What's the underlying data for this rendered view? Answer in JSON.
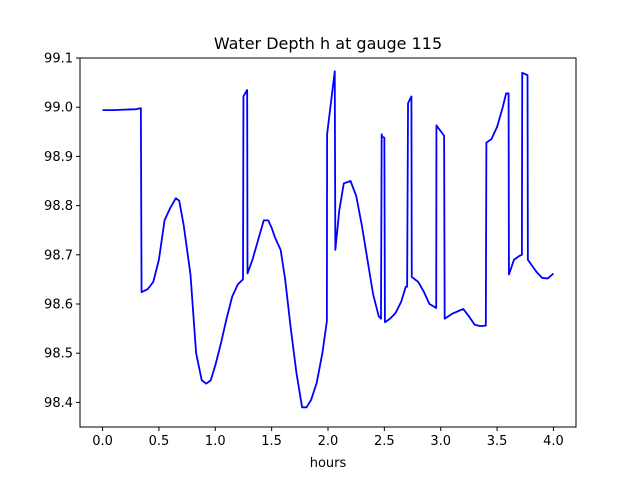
{
  "chart_data": {
    "type": "line",
    "title": "Water Depth h at gauge 115",
    "xlabel": "hours",
    "ylabel": "",
    "xlim": [
      -0.2,
      4.2
    ],
    "ylim": [
      98.35,
      99.1
    ],
    "xticks": [
      0.0,
      0.5,
      1.0,
      1.5,
      2.0,
      2.5,
      3.0,
      3.5,
      4.0
    ],
    "xtick_labels": [
      "0.0",
      "0.5",
      "1.0",
      "1.5",
      "2.0",
      "2.5",
      "3.0",
      "3.5",
      "4.0"
    ],
    "yticks": [
      98.4,
      98.5,
      98.6,
      98.7,
      98.8,
      98.9,
      99.0,
      99.1
    ],
    "ytick_labels": [
      "98.4",
      "98.5",
      "98.6",
      "98.7",
      "98.8",
      "98.9",
      "99.0",
      "99.1"
    ],
    "grid": false,
    "legend": "none",
    "series": [
      {
        "color": "#0000ff",
        "x": [
          0.0,
          0.1,
          0.2,
          0.3,
          0.34,
          0.346,
          0.4,
          0.45,
          0.5,
          0.55,
          0.6,
          0.65,
          0.68,
          0.72,
          0.78,
          0.83,
          0.88,
          0.92,
          0.96,
          1.0,
          1.05,
          1.1,
          1.15,
          1.2,
          1.246,
          1.25,
          1.283,
          1.286,
          1.33,
          1.38,
          1.43,
          1.47,
          1.5,
          1.53,
          1.58,
          1.62,
          1.67,
          1.72,
          1.77,
          1.81,
          1.85,
          1.9,
          1.95,
          1.99,
          1.992,
          2.06,
          2.065,
          2.1,
          2.14,
          2.2,
          2.25,
          2.3,
          2.35,
          2.4,
          2.45,
          2.47,
          2.476,
          2.48,
          2.5,
          2.505,
          2.55,
          2.6,
          2.65,
          2.69,
          2.702,
          2.71,
          2.74,
          2.743,
          2.8,
          2.85,
          2.9,
          2.96,
          2.962,
          3.03,
          3.035,
          3.1,
          3.15,
          3.2,
          3.25,
          3.3,
          3.35,
          3.4,
          3.405,
          3.45,
          3.5,
          3.55,
          3.58,
          3.602,
          3.605,
          3.65,
          3.7,
          3.72,
          3.723,
          3.77,
          3.773,
          3.85,
          3.9,
          3.95,
          4.0
        ],
        "y": [
          98.994,
          98.994,
          98.995,
          98.996,
          98.998,
          98.624,
          98.63,
          98.645,
          98.69,
          98.77,
          98.795,
          98.815,
          98.81,
          98.76,
          98.66,
          98.5,
          98.445,
          98.438,
          98.445,
          98.475,
          98.52,
          98.57,
          98.615,
          98.64,
          98.65,
          99.022,
          99.035,
          98.662,
          98.69,
          98.73,
          98.77,
          98.77,
          98.755,
          98.735,
          98.71,
          98.65,
          98.55,
          98.46,
          98.39,
          98.39,
          98.405,
          98.44,
          98.5,
          98.565,
          98.945,
          99.073,
          98.71,
          98.79,
          98.845,
          98.85,
          98.82,
          98.76,
          98.69,
          98.62,
          98.575,
          98.57,
          98.945,
          98.94,
          98.938,
          98.563,
          98.57,
          98.582,
          98.605,
          98.635,
          98.635,
          99.008,
          99.022,
          98.655,
          98.645,
          98.625,
          98.6,
          98.592,
          98.963,
          98.942,
          98.57,
          98.58,
          98.585,
          98.59,
          98.575,
          98.558,
          98.555,
          98.556,
          98.928,
          98.935,
          98.96,
          99.0,
          99.028,
          99.028,
          98.66,
          98.69,
          98.698,
          98.7,
          99.07,
          99.065,
          98.69,
          98.665,
          98.653,
          98.652,
          98.662
        ]
      }
    ]
  }
}
